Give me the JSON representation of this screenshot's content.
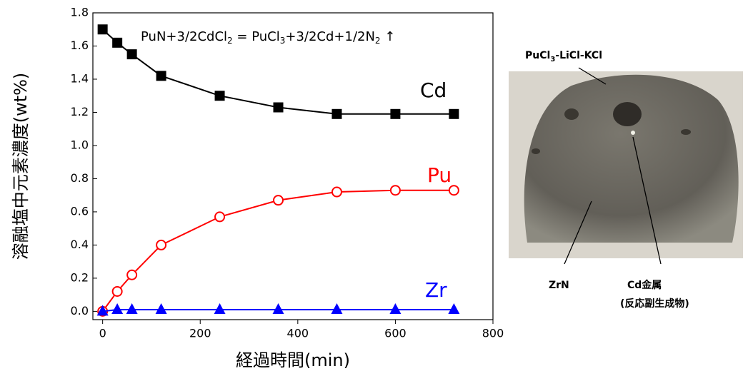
{
  "chart_data": {
    "type": "line",
    "annotation_parts": [
      "PuN+3/2CdCl",
      "2",
      " = PuCl",
      "3",
      "+3/2Cd+1/2N",
      "2",
      " ↑"
    ],
    "x_label": "経過時間(min)",
    "y_label": "溶融塩中元素濃度(wt%)",
    "x": [
      0,
      30,
      60,
      120,
      240,
      360,
      480,
      600,
      720
    ],
    "series": [
      {
        "name": "Cd",
        "color": "#000000",
        "marker": "square",
        "values": [
          1.7,
          1.62,
          1.55,
          1.42,
          1.3,
          1.23,
          1.19,
          1.19,
          1.19
        ]
      },
      {
        "name": "Pu",
        "color": "#ff0000",
        "marker": "open-circle",
        "values": [
          0,
          0.12,
          0.22,
          0.4,
          0.57,
          0.67,
          0.72,
          0.73,
          0.73
        ]
      },
      {
        "name": "Zr",
        "color": "#0000ff",
        "marker": "triangle",
        "values": [
          0,
          0.01,
          0.01,
          0.01,
          0.01,
          0.01,
          0.01,
          0.01,
          0.01
        ]
      }
    ],
    "xlim": [
      -20,
      800
    ],
    "xticks": [
      0,
      200,
      400,
      600,
      800
    ],
    "ylim": [
      -0.05,
      1.8
    ],
    "yticks": [
      {
        "value": 0,
        "label": "0.0"
      },
      0.2,
      0.4,
      0.6,
      0.8,
      {
        "value": 1,
        "label": "1.0"
      },
      1.2,
      1.4,
      1.6,
      1.8
    ]
  },
  "photo": {
    "labels": {
      "salt_parts": [
        "PuCl",
        "3",
        "-LiCl-KCl"
      ],
      "zrn": "ZrN",
      "cd_metal": "Cd金属",
      "byproduct": "(反応副生成物)"
    }
  }
}
